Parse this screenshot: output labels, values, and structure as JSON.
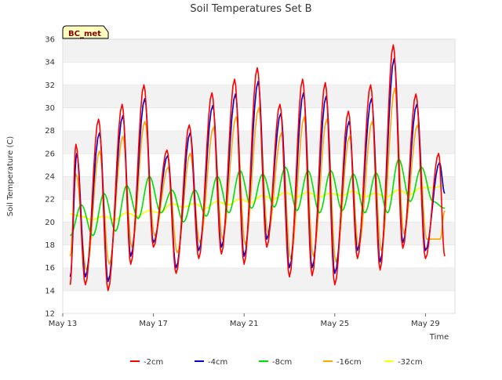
{
  "chart_data": {
    "type": "line",
    "title": "Soil Temperatures Set B",
    "xlabel": "Time",
    "ylabel": "Soil Temperature (C)",
    "badge": "BC_met",
    "ylim": [
      12,
      36
    ],
    "yticks": [
      12,
      14,
      16,
      18,
      20,
      22,
      24,
      26,
      28,
      30,
      32,
      34,
      36
    ],
    "xlim": [
      0,
      17.3
    ],
    "xticks": [
      {
        "x": 0,
        "label": "May 13"
      },
      {
        "x": 4,
        "label": "May 17"
      },
      {
        "x": 8,
        "label": "May 21"
      },
      {
        "x": 12,
        "label": "May 25"
      },
      {
        "x": 16,
        "label": "May 29"
      }
    ],
    "grid": "horizontal bands",
    "legend_position": "bottom",
    "colors": {
      "-2cm": "#ff0000",
      "-4cm": "#0000cc",
      "-8cm": "#00dd00",
      "-16cm": "#ffa500",
      "-32cm": "#ffff00"
    },
    "series": [
      {
        "name": "-2cm",
        "x": [
          0.33,
          0.58,
          1.0,
          1.58,
          2.0,
          2.62,
          3.0,
          3.58,
          4.0,
          4.6,
          5.0,
          5.58,
          6.0,
          6.58,
          7.0,
          7.58,
          8.0,
          8.58,
          9.0,
          9.58,
          10.0,
          10.58,
          11.0,
          11.58,
          12.0,
          12.6,
          13.0,
          13.58,
          14.0,
          14.58,
          15.0,
          15.58,
          16.0,
          16.58,
          16.85
        ],
        "y": [
          14.5,
          26.8,
          14.5,
          29.0,
          14.0,
          30.3,
          16.3,
          32.0,
          17.8,
          26.3,
          15.5,
          28.5,
          16.8,
          31.3,
          17.2,
          32.5,
          16.3,
          33.5,
          17.8,
          30.3,
          15.2,
          32.5,
          15.3,
          32.2,
          14.5,
          29.7,
          16.8,
          32.0,
          15.8,
          35.5,
          17.7,
          31.2,
          16.8,
          26.0,
          17.0
        ]
      },
      {
        "name": "-4cm",
        "x": [
          0.33,
          0.62,
          1.0,
          1.62,
          2.0,
          2.65,
          3.0,
          3.62,
          4.0,
          4.63,
          5.0,
          5.62,
          6.0,
          6.62,
          7.0,
          7.62,
          8.0,
          8.62,
          9.0,
          9.62,
          10.0,
          10.62,
          11.0,
          11.62,
          12.0,
          12.63,
          13.0,
          13.62,
          14.0,
          14.62,
          15.0,
          15.62,
          16.0,
          16.62,
          16.85
        ],
        "y": [
          15.2,
          26.0,
          15.2,
          27.8,
          14.8,
          29.3,
          17.0,
          30.8,
          18.2,
          25.8,
          16.0,
          27.8,
          17.5,
          30.2,
          17.8,
          31.2,
          17.0,
          32.3,
          18.5,
          29.5,
          16.0,
          31.3,
          16.0,
          31.0,
          15.5,
          28.8,
          17.5,
          30.8,
          16.5,
          34.3,
          18.2,
          30.3,
          17.5,
          25.2,
          22.5
        ]
      },
      {
        "name": "-8cm",
        "x": [
          0.33,
          0.82,
          1.33,
          1.82,
          2.33,
          2.82,
          3.33,
          3.82,
          4.33,
          4.82,
          5.33,
          5.82,
          6.33,
          6.82,
          7.33,
          7.82,
          8.33,
          8.82,
          9.33,
          9.82,
          10.33,
          10.82,
          11.33,
          11.82,
          12.33,
          12.82,
          13.33,
          13.82,
          14.33,
          14.82,
          15.33,
          15.82,
          16.33,
          16.85
        ],
        "y": [
          18.8,
          21.5,
          18.8,
          22.5,
          19.2,
          23.2,
          20.3,
          24.0,
          20.8,
          22.8,
          20.0,
          22.8,
          20.5,
          24.0,
          20.8,
          24.5,
          21.2,
          24.2,
          21.3,
          24.8,
          21.0,
          24.5,
          20.8,
          24.5,
          21.0,
          24.2,
          20.8,
          24.3,
          20.8,
          25.5,
          21.8,
          24.8,
          21.8,
          21.2
        ]
      },
      {
        "name": "-16cm",
        "x": [
          0.33,
          0.58,
          1.05,
          1.62,
          2.05,
          2.65,
          3.05,
          3.62,
          4.05,
          4.65,
          5.05,
          5.62,
          6.05,
          6.65,
          7.05,
          7.65,
          8.05,
          8.65,
          9.05,
          9.65,
          10.05,
          10.65,
          11.05,
          11.65,
          12.05,
          12.65,
          13.05,
          13.65,
          14.05,
          14.65,
          15.05,
          15.65,
          16.05,
          16.65,
          16.85
        ],
        "y": [
          17.0,
          24.2,
          15.8,
          26.2,
          16.3,
          27.5,
          17.8,
          28.8,
          18.8,
          24.8,
          17.3,
          26.0,
          18.2,
          28.3,
          18.5,
          29.2,
          18.0,
          30.0,
          19.0,
          27.8,
          16.8,
          29.2,
          17.0,
          29.0,
          16.5,
          27.5,
          17.8,
          28.8,
          17.5,
          31.7,
          19.0,
          28.5,
          18.5,
          18.5,
          21.0
        ]
      },
      {
        "name": "-32cm",
        "x": [
          0.33,
          0.8,
          1.3,
          1.8,
          2.3,
          2.8,
          3.3,
          3.8,
          4.3,
          4.8,
          5.3,
          5.8,
          6.3,
          6.8,
          7.3,
          7.8,
          8.3,
          8.8,
          9.3,
          9.8,
          10.3,
          10.8,
          11.3,
          11.8,
          12.3,
          12.8,
          13.3,
          13.8,
          14.3,
          14.8,
          15.3,
          15.8,
          16.3,
          16.85
        ],
        "y": [
          20.7,
          20.5,
          20.2,
          20.5,
          20.2,
          20.8,
          20.5,
          21.0,
          20.8,
          21.6,
          21.3,
          21.6,
          21.2,
          21.8,
          21.5,
          22.0,
          21.7,
          22.3,
          22.0,
          22.6,
          22.2,
          22.6,
          22.2,
          22.5,
          22.3,
          22.7,
          22.2,
          22.5,
          22.2,
          22.8,
          22.4,
          23.0,
          23.0,
          23.2
        ]
      }
    ]
  }
}
